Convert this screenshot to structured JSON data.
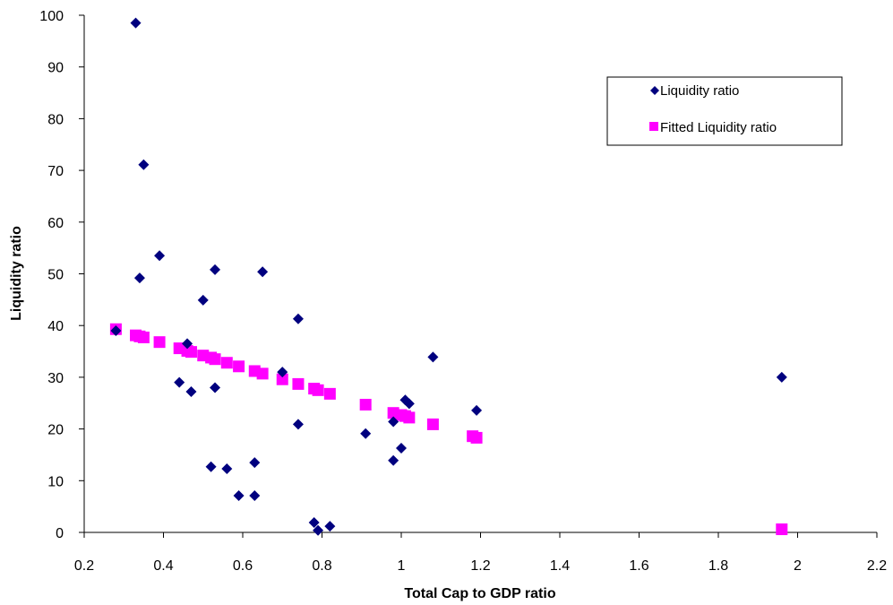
{
  "chart_data": {
    "type": "scatter",
    "title": "",
    "xlabel": "Total Cap to GDP ratio",
    "ylabel": "Liquidity ratio",
    "xlim": [
      0.2,
      2.2
    ],
    "ylim": [
      0,
      100
    ],
    "x_ticks": [
      "0.2",
      "0.4",
      "0.6",
      "0.8",
      "1",
      "1.2",
      "1.4",
      "1.6",
      "1.8",
      "2",
      "2.2"
    ],
    "y_ticks": [
      "0",
      "10",
      "20",
      "30",
      "40",
      "50",
      "60",
      "70",
      "80",
      "90",
      "100"
    ],
    "grid": false,
    "legend_position": "top-right",
    "series": [
      {
        "name": "Liquidity ratio",
        "marker": "diamond",
        "color": "#00007F",
        "points": [
          [
            0.28,
            39
          ],
          [
            0.33,
            98.5
          ],
          [
            0.34,
            49.2
          ],
          [
            0.35,
            71.1
          ],
          [
            0.39,
            53.5
          ],
          [
            0.44,
            29
          ],
          [
            0.46,
            36.5
          ],
          [
            0.47,
            27.2
          ],
          [
            0.5,
            44.9
          ],
          [
            0.52,
            12.7
          ],
          [
            0.53,
            50.8
          ],
          [
            0.53,
            28
          ],
          [
            0.56,
            12.3
          ],
          [
            0.59,
            7.1
          ],
          [
            0.63,
            7.1
          ],
          [
            0.63,
            13.5
          ],
          [
            0.65,
            50.4
          ],
          [
            0.7,
            31
          ],
          [
            0.74,
            41.3
          ],
          [
            0.74,
            20.9
          ],
          [
            0.78,
            1.9
          ],
          [
            0.79,
            0.4
          ],
          [
            0.82,
            1.2
          ],
          [
            0.91,
            19.1
          ],
          [
            0.98,
            13.9
          ],
          [
            0.98,
            21.4
          ],
          [
            1.0,
            16.3
          ],
          [
            1.01,
            25.6
          ],
          [
            1.02,
            24.9
          ],
          [
            1.08,
            33.9
          ],
          [
            1.19,
            23.6
          ],
          [
            1.96,
            30
          ]
        ]
      },
      {
        "name": "Fitted Liquidity ratio",
        "marker": "square",
        "color": "#FF00FF",
        "points": [
          [
            0.28,
            39.3
          ],
          [
            0.33,
            38.1
          ],
          [
            0.34,
            37.9
          ],
          [
            0.35,
            37.7
          ],
          [
            0.39,
            36.8
          ],
          [
            0.44,
            35.6
          ],
          [
            0.46,
            35.1
          ],
          [
            0.47,
            34.9
          ],
          [
            0.5,
            34.2
          ],
          [
            0.52,
            33.8
          ],
          [
            0.53,
            33.5
          ],
          [
            0.56,
            32.8
          ],
          [
            0.59,
            32.1
          ],
          [
            0.63,
            31.2
          ],
          [
            0.65,
            30.7
          ],
          [
            0.7,
            29.6
          ],
          [
            0.74,
            28.7
          ],
          [
            0.78,
            27.8
          ],
          [
            0.79,
            27.5
          ],
          [
            0.82,
            26.8
          ],
          [
            0.91,
            24.7
          ],
          [
            0.98,
            23.1
          ],
          [
            1.0,
            22.7
          ],
          [
            1.01,
            22.5
          ],
          [
            1.02,
            22.2
          ],
          [
            1.08,
            20.9
          ],
          [
            1.18,
            18.6
          ],
          [
            1.19,
            18.3
          ],
          [
            1.96,
            0.6
          ]
        ]
      }
    ]
  }
}
